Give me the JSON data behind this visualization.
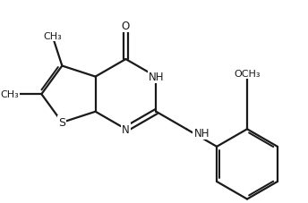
{
  "bg_color": "#ffffff",
  "line_color": "#1a1a1a",
  "line_width": 1.6,
  "font_size": 8.5,
  "figsize": [
    3.44,
    2.28
  ],
  "dpi": 100,
  "xlim": [
    0,
    8.6
  ],
  "ylim": [
    0,
    5.7
  ]
}
